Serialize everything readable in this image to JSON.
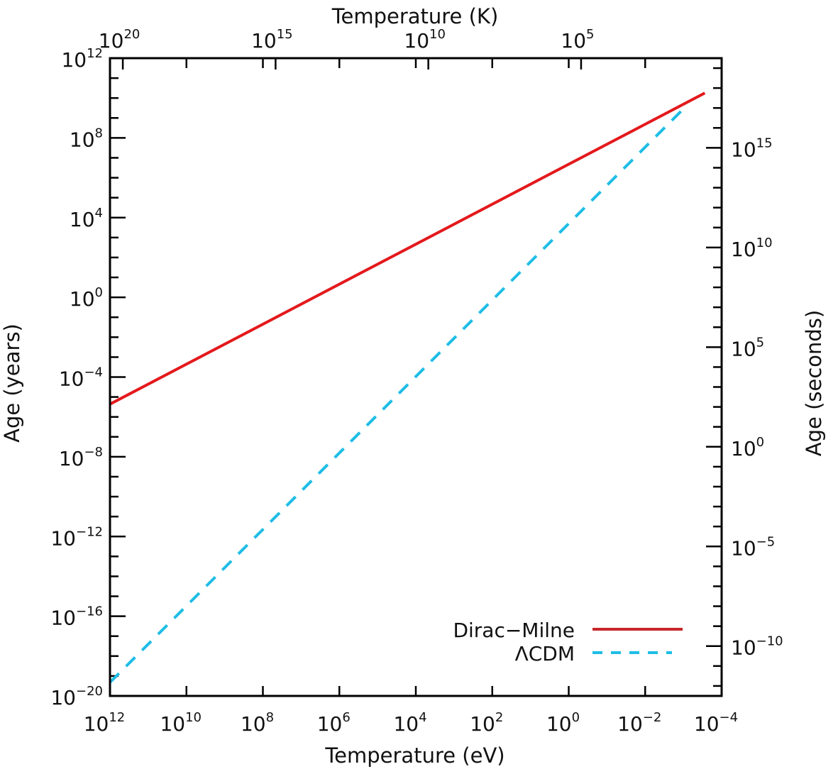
{
  "chart_data": {
    "type": "line",
    "title": "",
    "xlabel": "Temperature (eV)",
    "x2label": "Temperature (K)",
    "ylabel": "Age (years)",
    "y2label": "Age (seconds)",
    "xscale": "log",
    "yscale": "log",
    "xlim_log10": [
      12,
      -4
    ],
    "x2lim_log10": [
      20.42,
      0.4
    ],
    "ylim_log10": [
      -20,
      12
    ],
    "years_to_seconds_log10": 7.499,
    "x_ticks_log10": [
      12,
      10,
      8,
      6,
      4,
      2,
      0,
      -2,
      -4
    ],
    "x_tick_labels": [
      "12",
      "10",
      "8",
      "6",
      "4",
      "2",
      "0",
      "−2",
      "−4"
    ],
    "x2_ticks_log10": [
      20,
      15,
      10,
      5
    ],
    "x2_tick_labels": [
      "20",
      "15",
      "10",
      "5"
    ],
    "y_ticks_log10": [
      12,
      8,
      4,
      0,
      -4,
      -8,
      -12,
      -16,
      -20
    ],
    "y_tick_labels": [
      "12",
      "8",
      "4",
      "0",
      "−4",
      "−8",
      "−12",
      "−16",
      "−20"
    ],
    "y2_ticks_log10": [
      15,
      10,
      5,
      0,
      -5,
      -10
    ],
    "y2_tick_labels": [
      "15",
      "10",
      "5",
      "0",
      "−5",
      "−10"
    ],
    "tick_base": "10",
    "legend_position": "bottom-right",
    "series": [
      {
        "name": "Dirac−Milne",
        "style": "solid",
        "color": "#e3191c",
        "x_log10": [
          12,
          -3.56
        ],
        "y_log10": [
          -5.36,
          10.25
        ]
      },
      {
        "name": "ΛCDM",
        "style": "dashed",
        "color": "#1dbde6",
        "x_log10": [
          12,
          -3.06
        ],
        "y_log10": [
          -19.32,
          9.57
        ]
      }
    ]
  }
}
